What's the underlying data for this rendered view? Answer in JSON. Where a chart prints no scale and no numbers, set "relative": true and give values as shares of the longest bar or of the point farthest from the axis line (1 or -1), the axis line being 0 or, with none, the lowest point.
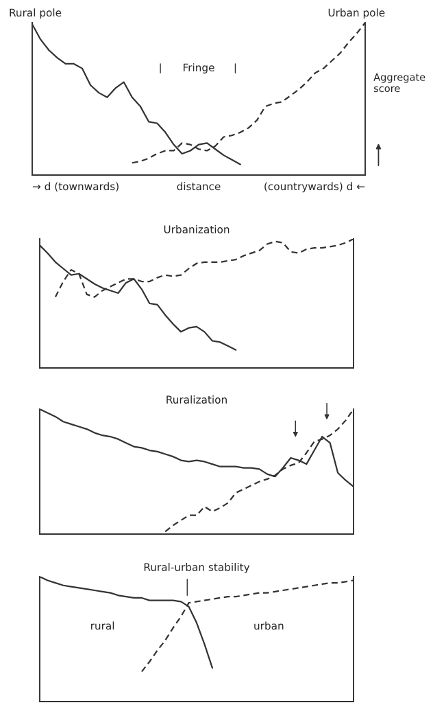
{
  "chart_data": [
    {
      "type": "line",
      "relative": true,
      "grid": false,
      "legend": false,
      "ylabel": "Aggregate\nscore",
      "categories": [
        null,
        null,
        null,
        null,
        null,
        null,
        null,
        null,
        null,
        null,
        null,
        null,
        null,
        null,
        null,
        null,
        null,
        null,
        null,
        null,
        null,
        null,
        null,
        null,
        null,
        null,
        null,
        null,
        null,
        null,
        null,
        null,
        null,
        null,
        null,
        null,
        null,
        null,
        null,
        null,
        null
      ],
      "annotations": [
        "Rural pole",
        "Urban pole",
        "Fringe",
        "→ d (townwards)",
        "distance",
        "(countrywards) d ←"
      ],
      "series": [
        {
          "color": "#333333",
          "line_style": "solid",
          "values": [
            0.99,
            0.89,
            0.82,
            0.77,
            0.73,
            0.73,
            0.7,
            0.59,
            0.54,
            0.51,
            0.57,
            0.61,
            0.51,
            0.45,
            0.35,
            0.34,
            0.28,
            0.2,
            0.14,
            0.16,
            0.2,
            0.21,
            0.17,
            0.13,
            0.1,
            0.07,
            null,
            null,
            null,
            null,
            null,
            null,
            null,
            null,
            null,
            null,
            null,
            null,
            null,
            null,
            null
          ]
        },
        {
          "color": "#333333",
          "line_style": "dashed",
          "values": [
            null,
            null,
            null,
            null,
            null,
            null,
            null,
            null,
            null,
            null,
            null,
            null,
            0.08,
            0.09,
            0.11,
            0.14,
            0.16,
            0.16,
            0.21,
            0.2,
            0.17,
            0.16,
            0.19,
            0.25,
            0.26,
            0.28,
            0.31,
            0.36,
            0.45,
            0.47,
            0.48,
            0.52,
            0.56,
            0.61,
            0.67,
            0.7,
            0.75,
            0.8,
            0.87,
            0.93,
            1.0
          ]
        }
      ]
    },
    {
      "type": "line",
      "relative": true,
      "grid": false,
      "legend": false,
      "title": "Urbanization",
      "categories": [
        null,
        null,
        null,
        null,
        null,
        null,
        null,
        null,
        null,
        null,
        null,
        null,
        null,
        null,
        null,
        null,
        null,
        null,
        null,
        null,
        null,
        null,
        null,
        null,
        null,
        null,
        null,
        null,
        null,
        null,
        null,
        null,
        null,
        null,
        null,
        null,
        null,
        null,
        null,
        null,
        null
      ],
      "series": [
        {
          "color": "#333333",
          "line_style": "solid",
          "values": [
            0.95,
            0.89,
            0.82,
            0.77,
            0.72,
            0.73,
            0.69,
            0.65,
            0.62,
            0.6,
            0.58,
            0.66,
            0.69,
            0.61,
            0.5,
            0.49,
            0.41,
            0.34,
            0.28,
            0.31,
            0.32,
            0.28,
            0.21,
            0.2,
            0.17,
            0.14,
            null,
            null,
            null,
            null,
            null,
            null,
            null,
            null,
            null,
            null,
            null,
            null,
            null,
            null,
            null
          ]
        },
        {
          "color": "#333333",
          "line_style": "dashed",
          "values": [
            null,
            null,
            0.55,
            0.67,
            0.76,
            0.73,
            0.57,
            0.55,
            0.6,
            0.63,
            0.66,
            0.69,
            0.69,
            0.67,
            0.67,
            0.7,
            0.72,
            0.71,
            0.72,
            0.77,
            0.81,
            0.82,
            0.82,
            0.82,
            0.83,
            0.84,
            0.87,
            0.89,
            0.91,
            0.96,
            0.98,
            0.97,
            0.9,
            0.89,
            0.92,
            0.93,
            0.93,
            0.94,
            0.95,
            0.97,
            1.0
          ]
        }
      ]
    },
    {
      "type": "line",
      "relative": true,
      "grid": false,
      "legend": false,
      "title": "Ruralization",
      "categories": [
        null,
        null,
        null,
        null,
        null,
        null,
        null,
        null,
        null,
        null,
        null,
        null,
        null,
        null,
        null,
        null,
        null,
        null,
        null,
        null,
        null,
        null,
        null,
        null,
        null,
        null,
        null,
        null,
        null,
        null,
        null,
        null,
        null,
        null,
        null,
        null,
        null,
        null,
        null,
        null,
        null
      ],
      "series": [
        {
          "color": "#333333",
          "line_style": "solid",
          "values": [
            1.0,
            0.97,
            0.94,
            0.9,
            0.88,
            0.86,
            0.84,
            0.81,
            0.79,
            0.78,
            0.76,
            0.73,
            0.7,
            0.69,
            0.67,
            0.66,
            0.64,
            0.62,
            0.59,
            0.58,
            0.59,
            0.58,
            0.56,
            0.54,
            0.54,
            0.54,
            0.53,
            0.53,
            0.52,
            0.48,
            0.46,
            0.53,
            0.61,
            0.59,
            0.56,
            0.67,
            0.78,
            0.73,
            0.49,
            0.43,
            0.38
          ]
        },
        {
          "color": "#333333",
          "line_style": "dashed",
          "values": [
            null,
            null,
            null,
            null,
            null,
            null,
            null,
            null,
            null,
            null,
            null,
            null,
            null,
            null,
            null,
            null,
            0.02,
            0.07,
            0.11,
            0.15,
            0.15,
            0.22,
            0.18,
            0.21,
            0.25,
            0.33,
            0.36,
            0.39,
            0.42,
            0.44,
            0.47,
            0.52,
            0.55,
            0.57,
            0.65,
            0.74,
            0.76,
            0.79,
            0.84,
            0.91,
            1.0
          ]
        }
      ]
    },
    {
      "type": "line",
      "relative": true,
      "grid": false,
      "legend": false,
      "title": "Rural-urban stability",
      "categories": [
        null,
        null,
        null,
        null,
        null,
        null,
        null,
        null,
        null,
        null,
        null,
        null,
        null,
        null,
        null,
        null,
        null,
        null,
        null,
        null,
        null,
        null,
        null,
        null,
        null,
        null,
        null,
        null,
        null,
        null,
        null,
        null,
        null,
        null,
        null,
        null,
        null,
        null,
        null,
        null,
        null
      ],
      "annotations": [
        "rural",
        "urban"
      ],
      "series": [
        {
          "color": "#333333",
          "line_style": "solid",
          "values": [
            1.0,
            0.97,
            0.95,
            0.93,
            0.92,
            0.91,
            0.9,
            0.89,
            0.88,
            0.87,
            0.85,
            0.84,
            0.83,
            0.83,
            0.81,
            0.81,
            0.81,
            0.81,
            0.8,
            0.76,
            0.63,
            0.46,
            0.27,
            null,
            null,
            null,
            null,
            null,
            null,
            null,
            null,
            null,
            null,
            null,
            null,
            null,
            null,
            null,
            null,
            null,
            null
          ]
        },
        {
          "color": "#333333",
          "line_style": "dashed",
          "values": [
            null,
            null,
            null,
            null,
            null,
            null,
            null,
            null,
            null,
            null,
            null,
            null,
            null,
            0.24,
            0.32,
            0.41,
            0.49,
            0.59,
            0.68,
            0.79,
            0.8,
            0.81,
            0.82,
            0.83,
            0.84,
            0.84,
            0.85,
            0.86,
            0.87,
            0.87,
            0.88,
            0.89,
            0.9,
            0.91,
            0.92,
            0.93,
            0.94,
            0.95,
            0.95,
            0.96,
            0.97
          ]
        }
      ]
    }
  ]
}
